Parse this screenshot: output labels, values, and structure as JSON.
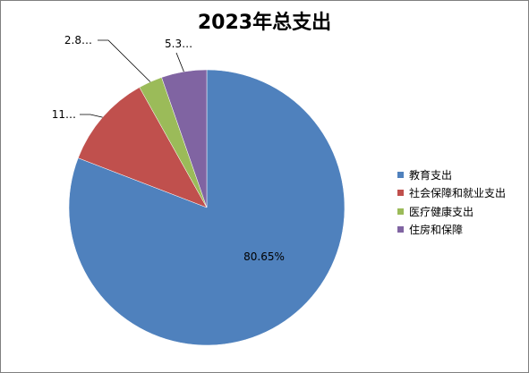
{
  "chart_data": {
    "type": "pie",
    "title": "2023年总支出",
    "categories": [
      "教育支出",
      "社会保障和就业支出",
      "医疗健康支出",
      "住房和保障"
    ],
    "values": [
      80.65,
      11.0,
      2.8,
      5.3
    ],
    "data_labels": [
      "80.65%",
      "11…",
      "2.8…",
      "5.3…"
    ],
    "colors": [
      "#4F81BD",
      "#C0504D",
      "#9BBB59",
      "#8064A2"
    ],
    "legend_position": "right",
    "start_angle": "12 o'clock",
    "direction": "clockwise"
  }
}
